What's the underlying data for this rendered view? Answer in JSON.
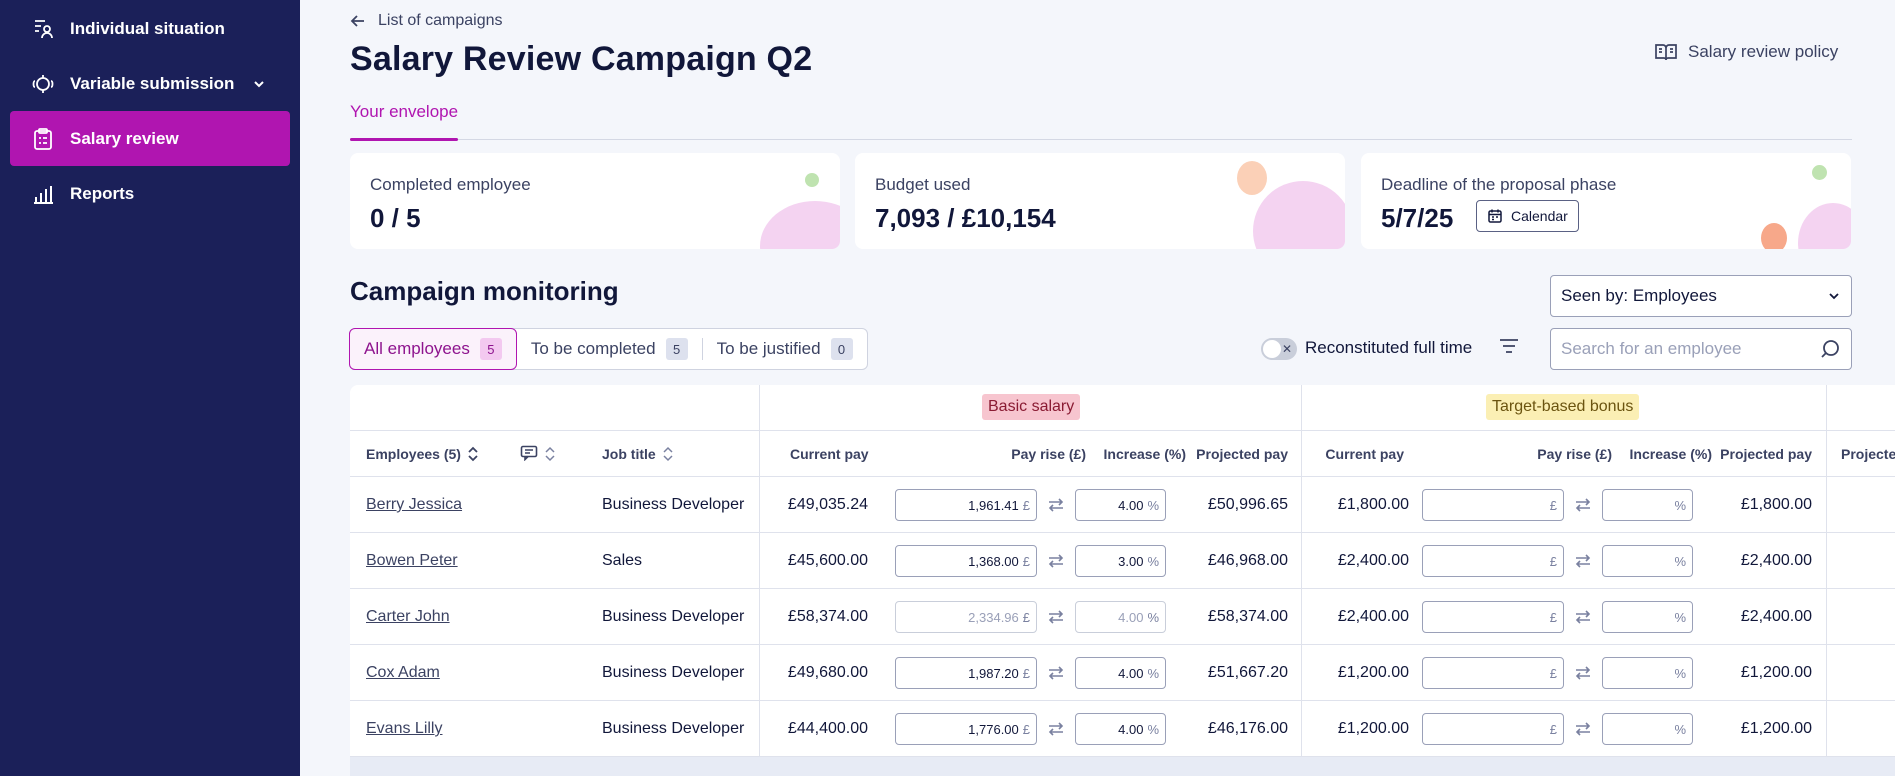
{
  "sidebar": {
    "items": [
      {
        "label": "Individual situation",
        "icon": "person-list-icon"
      },
      {
        "label": "Variable submission",
        "icon": "coins-icon",
        "has_chevron": true
      },
      {
        "label": "Salary review",
        "icon": "clipboard-icon",
        "active": true
      },
      {
        "label": "Reports",
        "icon": "bar-chart-icon"
      }
    ]
  },
  "header": {
    "back_label": "List of campaigns",
    "title": "Salary Review Campaign Q2",
    "policy_label": "Salary review policy",
    "tab_label": "Your envelope"
  },
  "cards": {
    "completed": {
      "label": "Completed employee",
      "value": "0 / 5"
    },
    "budget": {
      "label": "Budget used",
      "value": "7,093 / £10,154"
    },
    "deadline": {
      "label": "Deadline of the proposal phase",
      "value": "5/7/25",
      "button": "Calendar"
    }
  },
  "monitoring": {
    "title": "Campaign monitoring",
    "seen_by": "Seen by: Employees",
    "filters": [
      {
        "label": "All employees",
        "count": "5",
        "active": true
      },
      {
        "label": "To be completed",
        "count": "5"
      },
      {
        "label": "To be justified",
        "count": "0"
      }
    ],
    "toggle_label": "Reconstituted full time",
    "search_placeholder": "Search for an employee"
  },
  "table": {
    "groups": {
      "basic": "Basic salary",
      "bonus": "Target-based bonus"
    },
    "headers": {
      "employees": "Employees (5)",
      "job": "Job title",
      "current": "Current pay",
      "rise": "Pay rise (£)",
      "increase": "Increase (%)",
      "projected": "Projected pay",
      "projected_cut": "Projecte"
    },
    "currency_unit": "£",
    "percent_unit": "%",
    "rows": [
      {
        "name": "Berry Jessica",
        "job": "Business Developer",
        "current": "£49,035.24",
        "rise": "1,961.41",
        "pct": "4.00",
        "projected": "£50,996.65",
        "b_current": "£1,800.00",
        "b_projected": "£1,800.00",
        "disabled": false
      },
      {
        "name": "Bowen Peter",
        "job": "Sales",
        "current": "£45,600.00",
        "rise": "1,368.00",
        "pct": "3.00",
        "projected": "£46,968.00",
        "b_current": "£2,400.00",
        "b_projected": "£2,400.00",
        "disabled": false
      },
      {
        "name": "Carter John",
        "job": "Business Developer",
        "current": "£58,374.00",
        "rise": "2,334.96",
        "pct": "4.00",
        "projected": "£58,374.00",
        "b_current": "£2,400.00",
        "b_projected": "£2,400.00",
        "disabled": true
      },
      {
        "name": "Cox Adam",
        "job": "Business Developer",
        "current": "£49,680.00",
        "rise": "1,987.20",
        "pct": "4.00",
        "projected": "£51,667.20",
        "b_current": "£1,200.00",
        "b_projected": "£1,200.00",
        "disabled": false
      },
      {
        "name": "Evans Lilly",
        "job": "Business Developer",
        "current": "£44,400.00",
        "rise": "1,776.00",
        "pct": "4.00",
        "projected": "£46,176.00",
        "b_current": "£1,200.00",
        "b_projected": "£1,200.00",
        "disabled": false
      }
    ]
  },
  "colors": {
    "sidebar_bg": "#1b2059",
    "accent": "#b015b0",
    "basic_tag_bg": "#f7c5cf",
    "bonus_tag_bg": "#fbefb4"
  }
}
